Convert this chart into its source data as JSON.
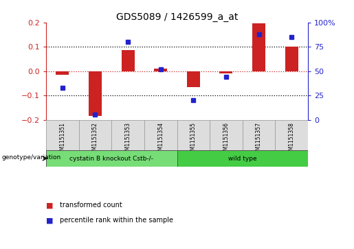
{
  "title": "GDS5089 / 1426599_a_at",
  "samples": [
    "GSM1151351",
    "GSM1151352",
    "GSM1151353",
    "GSM1151354",
    "GSM1151355",
    "GSM1151356",
    "GSM1151357",
    "GSM1151358"
  ],
  "bar_values": [
    -0.015,
    -0.185,
    0.085,
    0.01,
    -0.065,
    -0.01,
    0.195,
    0.1
  ],
  "scatter_values": [
    33,
    5,
    80,
    52,
    20,
    44,
    88,
    85
  ],
  "group1_label": "cystatin B knockout Cstb-/-",
  "group2_label": "wild type",
  "group1_count": 4,
  "group2_count": 4,
  "ylim_left": [
    -0.2,
    0.2
  ],
  "ylim_right": [
    0,
    100
  ],
  "yticks_left": [
    -0.2,
    -0.1,
    0,
    0.1,
    0.2
  ],
  "yticks_right": [
    0,
    25,
    50,
    75,
    100
  ],
  "bar_color": "#cc2222",
  "scatter_color": "#2222cc",
  "group1_color": "#77dd77",
  "group2_color": "#44cc44",
  "label_bar": "transformed count",
  "label_scatter": "percentile rank within the sample",
  "bg_color": "#ffffff",
  "plot_bg": "#ffffff",
  "left_axis_color": "#cc2222",
  "right_axis_color": "#2222cc",
  "tick_bg_color": "#cccccc",
  "tick_cell_color": "#dddddd"
}
